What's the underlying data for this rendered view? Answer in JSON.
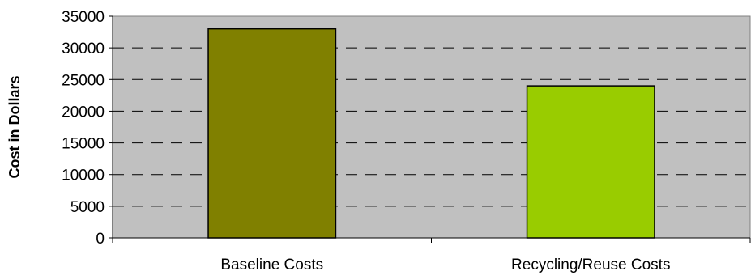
{
  "chart_data": {
    "type": "bar",
    "title": "",
    "xlabel": "",
    "ylabel": "Cost in Dollars",
    "categories": [
      "Baseline Costs",
      "Recycling/Reuse Costs"
    ],
    "values": [
      33000,
      24000
    ],
    "ylim": [
      0,
      35000
    ],
    "yticks": [
      0,
      5000,
      10000,
      15000,
      20000,
      25000,
      30000,
      35000
    ],
    "grid": true,
    "grid_style": "dashed",
    "legend": "none",
    "colors": {
      "plot_background": "#c0c0c0",
      "bars": [
        "#808000",
        "#99cc00"
      ],
      "bar_outline": "#000000",
      "gridlines": "#000000"
    }
  }
}
